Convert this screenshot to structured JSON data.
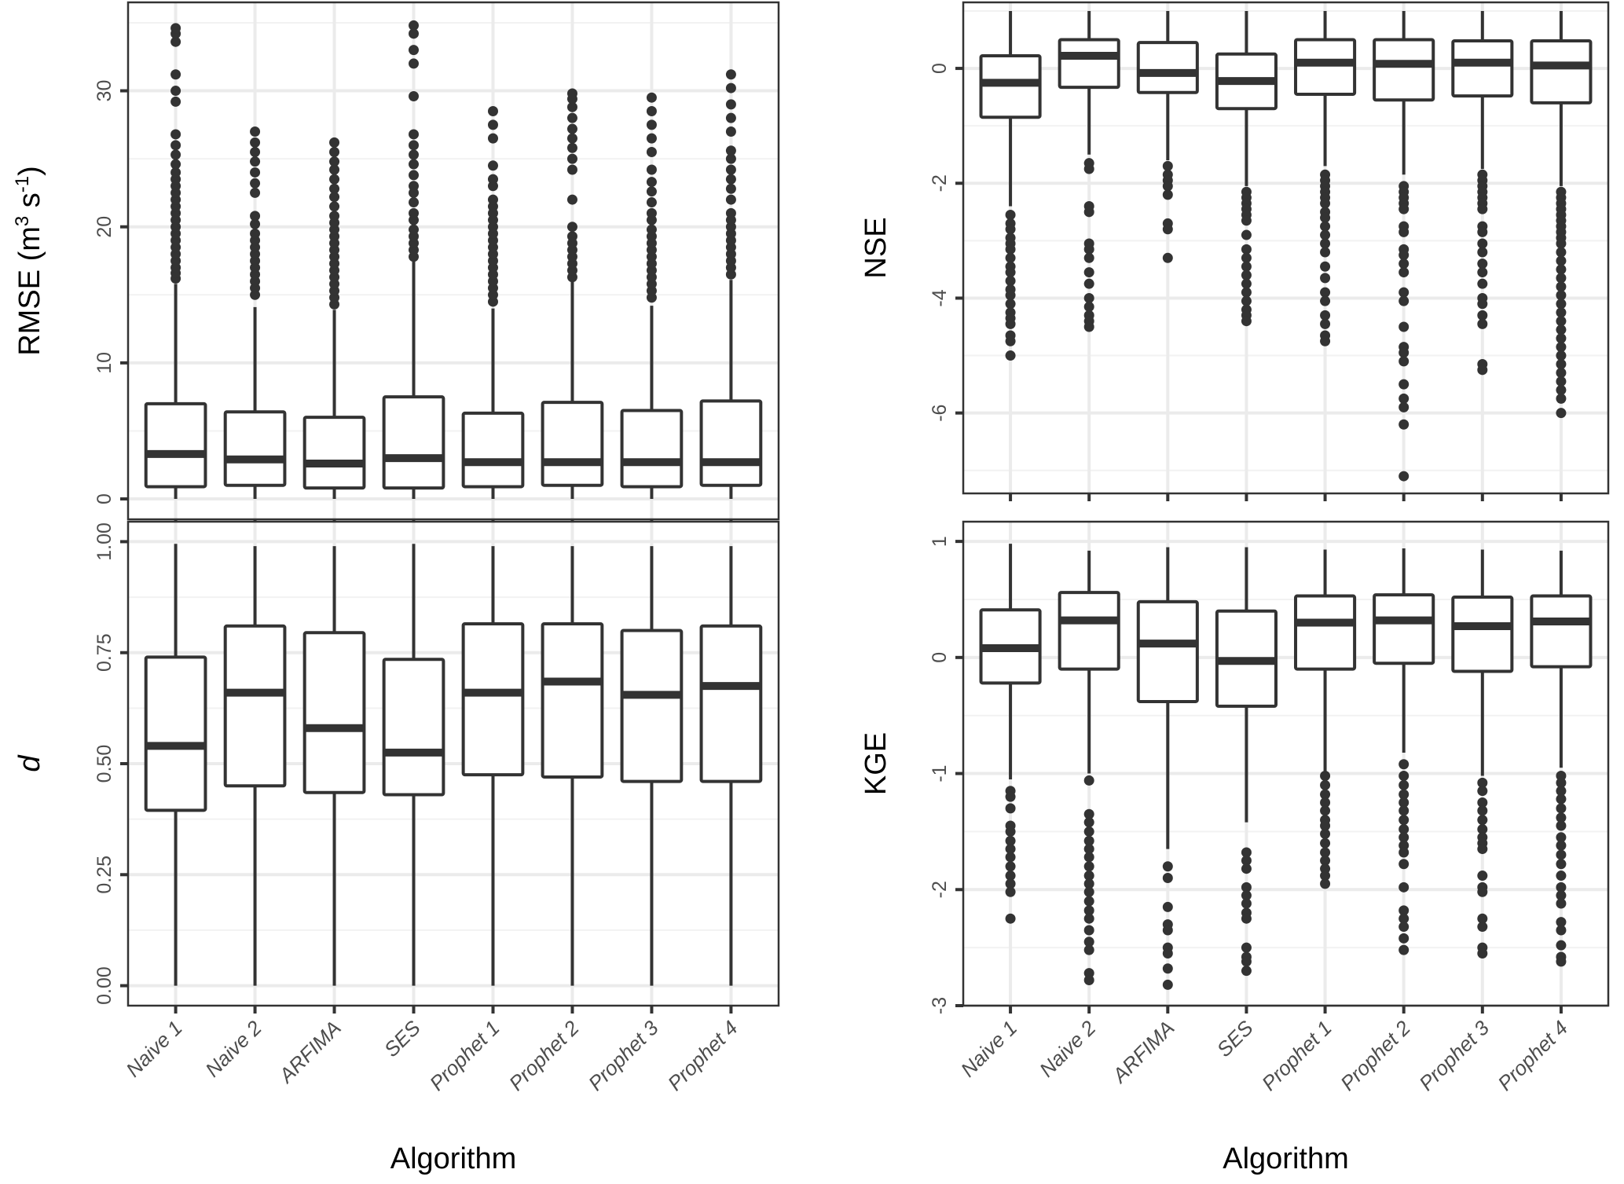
{
  "chart_data": [
    {
      "id": "rmse",
      "type": "boxplot",
      "ylabel": "RMSE (m3 s-1)",
      "ylabel_parts": {
        "base": "RMSE (m",
        "sup1": "3",
        "mid": " s",
        "sup2": "-1",
        "end": ")"
      },
      "xlabel": "",
      "categories": [
        "Naive 1",
        "Naive 2",
        "ARFIMA",
        "SES",
        "Prophet 1",
        "Prophet 2",
        "Prophet 3",
        "Prophet 4"
      ],
      "ylim": [
        -1.5,
        36.5
      ],
      "yticks": [
        0,
        10,
        20,
        30
      ],
      "ytick_labels": [
        "0",
        "10",
        "20",
        "30"
      ],
      "minor_yticks": [
        5,
        15,
        25,
        35
      ],
      "grid": true,
      "boxes": [
        {
          "whisker_low": 0.0,
          "q1": 0.9,
          "median": 3.3,
          "q3": 7.0,
          "whisker_high": 15.8,
          "outliers": [
            16.2,
            16.6,
            17.0,
            17.5,
            18.0,
            18.5,
            19.0,
            19.5,
            20.0,
            20.5,
            21.0,
            21.5,
            22.0,
            22.5,
            23.0,
            23.5,
            24.0,
            24.6,
            25.3,
            26.0,
            26.8,
            29.2,
            30.0,
            31.2,
            33.6,
            34.2,
            34.6
          ]
        },
        {
          "whisker_low": 0.0,
          "q1": 1.0,
          "median": 2.9,
          "q3": 6.4,
          "whisker_high": 14.1,
          "outliers": [
            15.0,
            15.5,
            16.0,
            16.5,
            17.0,
            17.5,
            18.0,
            18.5,
            19.0,
            19.5,
            20.2,
            20.8,
            22.5,
            23.2,
            24.0,
            24.8,
            25.5,
            26.2,
            27.0
          ]
        },
        {
          "whisker_low": 0.0,
          "q1": 0.8,
          "median": 2.6,
          "q3": 6.0,
          "whisker_high": 13.9,
          "outliers": [
            14.3,
            14.8,
            15.3,
            15.8,
            16.3,
            16.8,
            17.3,
            17.8,
            18.3,
            18.8,
            19.3,
            19.8,
            20.3,
            20.8,
            21.5,
            22.2,
            22.8,
            23.5,
            24.2,
            24.8,
            25.5,
            26.2
          ]
        },
        {
          "whisker_low": 0.0,
          "q1": 0.8,
          "median": 3.0,
          "q3": 7.5,
          "whisker_high": 17.5,
          "outliers": [
            17.8,
            18.3,
            18.8,
            19.3,
            19.8,
            20.5,
            21.0,
            21.8,
            22.5,
            23.0,
            23.8,
            24.6,
            25.3,
            26.0,
            26.8,
            29.6,
            32.0,
            33.0,
            34.2,
            34.8
          ]
        },
        {
          "whisker_low": 0.0,
          "q1": 0.9,
          "median": 2.7,
          "q3": 6.3,
          "whisker_high": 14.0,
          "outliers": [
            14.5,
            15.0,
            15.5,
            16.0,
            16.5,
            17.0,
            17.5,
            18.0,
            18.5,
            19.0,
            19.5,
            20.0,
            20.5,
            21.0,
            21.5,
            22.0,
            23.0,
            23.5,
            24.5,
            26.5,
            27.5,
            28.5
          ]
        },
        {
          "whisker_low": 0.0,
          "q1": 1.0,
          "median": 2.7,
          "q3": 7.1,
          "whisker_high": 16.0,
          "outliers": [
            16.3,
            16.8,
            17.3,
            17.8,
            18.3,
            18.8,
            19.3,
            20.0,
            22.0,
            24.2,
            25.0,
            25.8,
            26.5,
            27.2,
            28.0,
            28.8,
            29.4,
            29.8
          ]
        },
        {
          "whisker_low": 0.0,
          "q1": 0.9,
          "median": 2.7,
          "q3": 6.5,
          "whisker_high": 14.2,
          "outliers": [
            14.8,
            15.3,
            15.8,
            16.3,
            16.8,
            17.3,
            17.8,
            18.3,
            18.8,
            19.3,
            19.8,
            20.5,
            21.0,
            21.8,
            22.6,
            23.3,
            24.2,
            25.5,
            26.5,
            27.5,
            28.5,
            29.5
          ]
        },
        {
          "whisker_low": 0.0,
          "q1": 1.0,
          "median": 2.7,
          "q3": 7.2,
          "whisker_high": 16.1,
          "outliers": [
            16.5,
            17.0,
            17.5,
            18.0,
            18.5,
            19.0,
            19.5,
            20.0,
            20.5,
            21.0,
            22.0,
            22.8,
            23.5,
            24.2,
            25.0,
            25.6,
            27.0,
            28.0,
            29.0,
            30.2,
            31.2
          ]
        }
      ]
    },
    {
      "id": "nse",
      "type": "boxplot",
      "ylabel": "NSE",
      "xlabel": "",
      "categories": [
        "Naive 1",
        "Naive 2",
        "ARFIMA",
        "SES",
        "Prophet 1",
        "Prophet 2",
        "Prophet 3",
        "Prophet 4"
      ],
      "ylim": [
        -7.4,
        1.15
      ],
      "yticks": [
        0,
        -2,
        -4,
        -6
      ],
      "ytick_labels": [
        "0",
        "-2",
        "-4",
        "-6"
      ],
      "minor_yticks": [
        1,
        -1,
        -3,
        -5,
        -7
      ],
      "grid": true,
      "boxes": [
        {
          "whisker_low": -2.4,
          "q1": -0.85,
          "median": -0.25,
          "q3": 0.22,
          "whisker_high": 1.0,
          "outliers": [
            -2.55,
            -2.7,
            -2.8,
            -2.95,
            -3.05,
            -3.15,
            -3.3,
            -3.45,
            -3.55,
            -3.7,
            -3.85,
            -3.95,
            -4.1,
            -4.25,
            -4.35,
            -4.45,
            -4.65,
            -4.75,
            -5.0
          ]
        },
        {
          "whisker_low": -1.5,
          "q1": -0.33,
          "median": 0.22,
          "q3": 0.5,
          "whisker_high": 1.0,
          "outliers": [
            -1.65,
            -1.75,
            -2.4,
            -2.5,
            -3.05,
            -3.15,
            -3.3,
            -3.55,
            -3.75,
            -4.0,
            -4.15,
            -4.3,
            -4.4,
            -4.5
          ]
        },
        {
          "whisker_low": -1.6,
          "q1": -0.42,
          "median": -0.08,
          "q3": 0.45,
          "whisker_high": 1.0,
          "outliers": [
            -1.7,
            -1.85,
            -1.95,
            -2.05,
            -2.2,
            -2.7,
            -2.8,
            -3.3
          ]
        },
        {
          "whisker_low": -2.05,
          "q1": -0.7,
          "median": -0.22,
          "q3": 0.25,
          "whisker_high": 1.0,
          "outliers": [
            -2.15,
            -2.25,
            -2.35,
            -2.45,
            -2.55,
            -2.65,
            -2.9,
            -3.15,
            -3.3,
            -3.45,
            -3.6,
            -3.75,
            -3.9,
            -4.05,
            -4.2,
            -4.3,
            -4.4
          ]
        },
        {
          "whisker_low": -1.7,
          "q1": -0.45,
          "median": 0.1,
          "q3": 0.5,
          "whisker_high": 1.0,
          "outliers": [
            -1.85,
            -1.95,
            -2.05,
            -2.15,
            -2.25,
            -2.35,
            -2.5,
            -2.6,
            -2.75,
            -2.9,
            -3.05,
            -3.2,
            -3.45,
            -3.65,
            -3.9,
            -4.05,
            -4.3,
            -4.45,
            -4.65,
            -4.75
          ]
        },
        {
          "whisker_low": -1.85,
          "q1": -0.55,
          "median": 0.08,
          "q3": 0.5,
          "whisker_high": 1.0,
          "outliers": [
            -2.05,
            -2.15,
            -2.25,
            -2.35,
            -2.45,
            -2.75,
            -2.85,
            -3.15,
            -3.25,
            -3.4,
            -3.55,
            -3.9,
            -4.05,
            -4.5,
            -4.85,
            -4.95,
            -5.1,
            -5.5,
            -5.75,
            -5.9,
            -6.2,
            -7.1
          ]
        },
        {
          "whisker_low": -1.75,
          "q1": -0.48,
          "median": 0.1,
          "q3": 0.48,
          "whisker_high": 1.0,
          "outliers": [
            -1.85,
            -1.95,
            -2.05,
            -2.15,
            -2.25,
            -2.35,
            -2.45,
            -2.75,
            -2.85,
            -3.05,
            -3.2,
            -3.4,
            -3.55,
            -3.75,
            -4.0,
            -4.1,
            -4.3,
            -4.45,
            -5.15,
            -5.25
          ]
        },
        {
          "whisker_low": -2.05,
          "q1": -0.6,
          "median": 0.05,
          "q3": 0.48,
          "whisker_high": 1.0,
          "outliers": [
            -2.15,
            -2.25,
            -2.35,
            -2.45,
            -2.55,
            -2.65,
            -2.75,
            -2.85,
            -2.95,
            -3.05,
            -3.2,
            -3.35,
            -3.5,
            -3.65,
            -3.8,
            -3.95,
            -4.1,
            -4.25,
            -4.4,
            -4.55,
            -4.7,
            -4.85,
            -5.0,
            -5.15,
            -5.3,
            -5.45,
            -5.6,
            -5.75,
            -6.0
          ]
        }
      ]
    },
    {
      "id": "d",
      "type": "boxplot",
      "ylabel": "d",
      "xlabel": "Algorithm",
      "categories": [
        "Naive 1",
        "Naive 2",
        "ARFIMA",
        "SES",
        "Prophet 1",
        "Prophet 2",
        "Prophet 3",
        "Prophet 4"
      ],
      "ylim": [
        -0.045,
        1.045
      ],
      "yticks": [
        0.0,
        0.25,
        0.5,
        0.75,
        1.0
      ],
      "ytick_labels": [
        "0.00",
        "0.25",
        "0.50",
        "0.75",
        "1.00"
      ],
      "minor_yticks": [
        0.125,
        0.375,
        0.625,
        0.875
      ],
      "grid": true,
      "boxes": [
        {
          "whisker_low": 0.0,
          "q1": 0.395,
          "median": 0.54,
          "q3": 0.74,
          "whisker_high": 0.995,
          "outliers": []
        },
        {
          "whisker_low": 0.0,
          "q1": 0.45,
          "median": 0.66,
          "q3": 0.81,
          "whisker_high": 0.99,
          "outliers": []
        },
        {
          "whisker_low": 0.0,
          "q1": 0.435,
          "median": 0.58,
          "q3": 0.795,
          "whisker_high": 0.99,
          "outliers": []
        },
        {
          "whisker_low": 0.0,
          "q1": 0.43,
          "median": 0.525,
          "q3": 0.735,
          "whisker_high": 0.995,
          "outliers": []
        },
        {
          "whisker_low": 0.0,
          "q1": 0.475,
          "median": 0.66,
          "q3": 0.815,
          "whisker_high": 0.99,
          "outliers": []
        },
        {
          "whisker_low": 0.0,
          "q1": 0.47,
          "median": 0.685,
          "q3": 0.815,
          "whisker_high": 0.99,
          "outliers": []
        },
        {
          "whisker_low": 0.0,
          "q1": 0.46,
          "median": 0.655,
          "q3": 0.8,
          "whisker_high": 0.99,
          "outliers": []
        },
        {
          "whisker_low": 0.0,
          "q1": 0.46,
          "median": 0.675,
          "q3": 0.81,
          "whisker_high": 0.99,
          "outliers": []
        }
      ]
    },
    {
      "id": "kge",
      "type": "boxplot",
      "ylabel": "KGE",
      "xlabel": "Algorithm",
      "categories": [
        "Naive 1",
        "Naive 2",
        "ARFIMA",
        "SES",
        "Prophet 1",
        "Prophet 2",
        "Prophet 3",
        "Prophet 4"
      ],
      "ylim": [
        -3.0,
        1.17
      ],
      "yticks": [
        1,
        0,
        -1,
        -2,
        -3
      ],
      "ytick_labels": [
        "1",
        "0",
        "-1",
        "-2",
        "-3"
      ],
      "minor_yticks": [
        0.5,
        -0.5,
        -1.5,
        -2.5
      ],
      "grid": true,
      "boxes": [
        {
          "whisker_low": -1.05,
          "q1": -0.22,
          "median": 0.08,
          "q3": 0.41,
          "whisker_high": 0.98,
          "outliers": [
            -1.15,
            -1.2,
            -1.3,
            -1.45,
            -1.5,
            -1.58,
            -1.65,
            -1.72,
            -1.8,
            -1.88,
            -1.95,
            -2.02,
            -2.25
          ]
        },
        {
          "whisker_low": -1.0,
          "q1": -0.1,
          "median": 0.32,
          "q3": 0.56,
          "whisker_high": 0.92,
          "outliers": [
            -1.06,
            -1.35,
            -1.42,
            -1.5,
            -1.58,
            -1.65,
            -1.72,
            -1.8,
            -1.88,
            -1.95,
            -2.02,
            -2.1,
            -2.18,
            -2.25,
            -2.35,
            -2.45,
            -2.52,
            -2.72,
            -2.78
          ]
        },
        {
          "whisker_low": -1.65,
          "q1": -0.38,
          "median": 0.12,
          "q3": 0.48,
          "whisker_high": 0.95,
          "outliers": [
            -1.8,
            -1.9,
            -2.15,
            -2.3,
            -2.35,
            -2.5,
            -2.55,
            -2.68,
            -2.82
          ]
        },
        {
          "whisker_low": -1.42,
          "q1": -0.42,
          "median": -0.03,
          "q3": 0.4,
          "whisker_high": 0.95,
          "outliers": [
            -1.68,
            -1.75,
            -1.82,
            -1.98,
            -2.05,
            -2.12,
            -2.2,
            -2.25,
            -2.5,
            -2.58,
            -2.62,
            -2.7
          ]
        },
        {
          "whisker_low": -0.98,
          "q1": -0.1,
          "median": 0.3,
          "q3": 0.53,
          "whisker_high": 0.93,
          "outliers": [
            -1.02,
            -1.1,
            -1.18,
            -1.25,
            -1.32,
            -1.4,
            -1.45,
            -1.52,
            -1.6,
            -1.68,
            -1.75,
            -1.82,
            -1.88,
            -1.95
          ]
        },
        {
          "whisker_low": -0.82,
          "q1": -0.05,
          "median": 0.32,
          "q3": 0.54,
          "whisker_high": 0.94,
          "outliers": [
            -0.92,
            -1.02,
            -1.1,
            -1.18,
            -1.25,
            -1.32,
            -1.4,
            -1.48,
            -1.55,
            -1.62,
            -1.68,
            -1.78,
            -1.98,
            -2.18,
            -2.25,
            -2.32,
            -2.42,
            -2.52
          ]
        },
        {
          "whisker_low": -1.02,
          "q1": -0.12,
          "median": 0.27,
          "q3": 0.52,
          "whisker_high": 0.93,
          "outliers": [
            -1.08,
            -1.15,
            -1.25,
            -1.32,
            -1.4,
            -1.48,
            -1.55,
            -1.6,
            -1.65,
            -1.88,
            -1.98,
            -2.02,
            -2.25,
            -2.32,
            -2.5,
            -2.55
          ]
        },
        {
          "whisker_low": -0.95,
          "q1": -0.08,
          "median": 0.31,
          "q3": 0.53,
          "whisker_high": 0.92,
          "outliers": [
            -1.02,
            -1.08,
            -1.15,
            -1.22,
            -1.3,
            -1.38,
            -1.45,
            -1.55,
            -1.62,
            -1.7,
            -1.78,
            -1.88,
            -1.98,
            -2.05,
            -2.12,
            -2.28,
            -2.35,
            -2.48,
            -2.58,
            -2.62
          ]
        }
      ]
    }
  ]
}
